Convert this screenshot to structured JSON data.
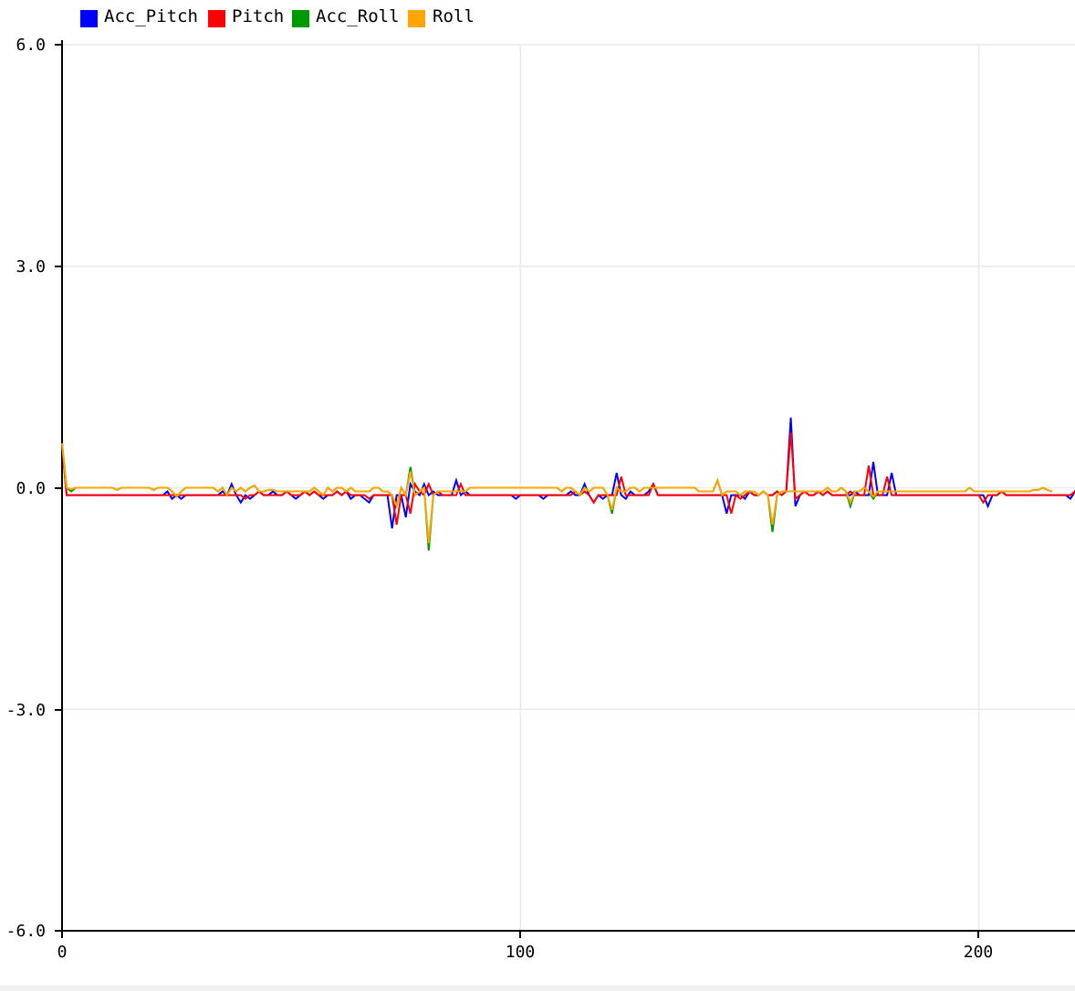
{
  "chart_data": {
    "type": "line",
    "title": "",
    "xlabel": "",
    "ylabel": "",
    "xlim": [
      0,
      221
    ],
    "ylim": [
      -6.0,
      6.0
    ],
    "x_ticks": [
      0,
      100,
      200
    ],
    "x_tick_labels": [
      "0",
      "100",
      "200"
    ],
    "y_ticks": [
      6.0,
      3.0,
      0.0,
      -3.0,
      -6.0
    ],
    "y_tick_labels": [
      "6.0",
      "3.0",
      "0.0",
      "-3.0",
      "-6.0"
    ],
    "grid": true,
    "legend_position": "top-left",
    "series": [
      {
        "name": "Acc_Pitch",
        "color": "#0000ff",
        "values": [
          0.6,
          -0.1,
          -0.1,
          -0.1,
          -0.1,
          -0.1,
          -0.1,
          -0.1,
          -0.1,
          -0.1,
          -0.1,
          -0.1,
          -0.1,
          -0.1,
          -0.1,
          -0.1,
          -0.1,
          -0.1,
          -0.1,
          -0.1,
          -0.1,
          -0.1,
          -0.1,
          -0.05,
          -0.15,
          -0.1,
          -0.15,
          -0.1,
          -0.1,
          -0.1,
          -0.1,
          -0.1,
          -0.1,
          -0.1,
          -0.1,
          -0.05,
          -0.1,
          0.05,
          -0.1,
          -0.2,
          -0.1,
          -0.15,
          -0.1,
          -0.05,
          -0.1,
          -0.1,
          -0.05,
          -0.1,
          -0.1,
          -0.05,
          -0.1,
          -0.15,
          -0.1,
          -0.05,
          -0.1,
          -0.05,
          -0.1,
          -0.15,
          -0.1,
          -0.1,
          -0.05,
          -0.1,
          -0.05,
          -0.15,
          -0.1,
          -0.1,
          -0.15,
          -0.2,
          -0.1,
          -0.1,
          -0.1,
          -0.1,
          -0.55,
          -0.1,
          -0.1,
          -0.4,
          0.05,
          -0.05,
          -0.1,
          0.05,
          -0.1,
          -0.05,
          -0.1,
          -0.1,
          -0.1,
          -0.1,
          0.1,
          -0.1,
          -0.05,
          -0.1,
          -0.1,
          -0.1,
          -0.1,
          -0.1,
          -0.1,
          -0.1,
          -0.1,
          -0.1,
          -0.1,
          -0.15,
          -0.1,
          -0.1,
          -0.1,
          -0.1,
          -0.1,
          -0.15,
          -0.1,
          -0.1,
          -0.1,
          -0.1,
          -0.1,
          -0.05,
          -0.1,
          -0.1,
          0.05,
          -0.1,
          -0.2,
          -0.1,
          -0.15,
          -0.1,
          -0.1,
          0.2,
          -0.1,
          -0.15,
          -0.05,
          -0.1,
          -0.1,
          -0.1,
          -0.05,
          0.05,
          -0.1,
          -0.1,
          -0.1,
          -0.1,
          -0.1,
          -0.1,
          -0.1,
          -0.1,
          -0.1,
          -0.1,
          -0.1,
          -0.1,
          -0.1,
          -0.1,
          -0.1,
          -0.35,
          -0.1,
          -0.1,
          -0.1,
          -0.15,
          -0.05,
          -0.1,
          -0.1,
          -0.05,
          -0.1,
          -0.1,
          -0.05,
          -0.1,
          -0.05,
          0.95,
          -0.25,
          -0.1,
          -0.05,
          -0.1,
          -0.1,
          -0.05,
          -0.1,
          -0.05,
          -0.1,
          -0.1,
          -0.1,
          -0.1,
          -0.1,
          -0.05,
          -0.1,
          -0.1,
          -0.1,
          0.35,
          -0.1,
          -0.1,
          -0.1,
          0.2,
          -0.1,
          -0.1,
          -0.1,
          -0.1,
          -0.1,
          -0.1,
          -0.1,
          -0.1,
          -0.1,
          -0.1,
          -0.1,
          -0.1,
          -0.1,
          -0.1,
          -0.1,
          -0.1,
          -0.1,
          -0.1,
          -0.1,
          -0.1,
          -0.25,
          -0.1,
          -0.1,
          -0.05,
          -0.1,
          -0.1,
          -0.1,
          -0.1,
          -0.1,
          -0.1,
          -0.1,
          -0.1,
          -0.1,
          -0.1,
          -0.1,
          -0.1,
          -0.1,
          -0.1,
          -0.15,
          -0.05,
          -0.1
        ],
        "markers": false
      },
      {
        "name": "Pitch",
        "color": "#ff0000",
        "values": [
          0.6,
          -0.1,
          -0.1,
          -0.1,
          -0.1,
          -0.1,
          -0.1,
          -0.1,
          -0.1,
          -0.1,
          -0.1,
          -0.1,
          -0.1,
          -0.1,
          -0.1,
          -0.1,
          -0.1,
          -0.1,
          -0.1,
          -0.1,
          -0.1,
          -0.1,
          -0.1,
          -0.1,
          -0.1,
          -0.1,
          -0.1,
          -0.1,
          -0.1,
          -0.1,
          -0.1,
          -0.1,
          -0.1,
          -0.1,
          -0.1,
          -0.1,
          -0.1,
          -0.1,
          -0.1,
          -0.1,
          -0.15,
          -0.1,
          -0.1,
          -0.05,
          -0.1,
          -0.1,
          -0.1,
          -0.1,
          -0.1,
          -0.05,
          -0.1,
          -0.1,
          -0.1,
          -0.05,
          -0.1,
          -0.05,
          -0.1,
          -0.1,
          -0.1,
          -0.1,
          -0.05,
          -0.1,
          -0.05,
          -0.1,
          -0.1,
          -0.1,
          -0.1,
          -0.15,
          -0.1,
          -0.1,
          -0.1,
          -0.1,
          -0.1,
          -0.5,
          -0.1,
          -0.1,
          -0.35,
          0.05,
          -0.05,
          -0.1,
          0.05,
          -0.1,
          -0.05,
          -0.1,
          -0.1,
          -0.1,
          -0.1,
          0.05,
          -0.1,
          -0.1,
          -0.1,
          -0.1,
          -0.1,
          -0.1,
          -0.1,
          -0.1,
          -0.1,
          -0.1,
          -0.1,
          -0.1,
          -0.1,
          -0.1,
          -0.1,
          -0.1,
          -0.1,
          -0.1,
          -0.1,
          -0.1,
          -0.1,
          -0.1,
          -0.1,
          -0.1,
          -0.05,
          -0.1,
          -0.05,
          -0.1,
          -0.2,
          -0.1,
          -0.1,
          -0.1,
          -0.1,
          -0.1,
          0.15,
          -0.1,
          -0.1,
          -0.1,
          -0.1,
          -0.1,
          -0.1,
          0.05,
          -0.1,
          -0.1,
          -0.1,
          -0.1,
          -0.1,
          -0.1,
          -0.1,
          -0.1,
          -0.1,
          -0.1,
          -0.1,
          -0.1,
          -0.1,
          -0.1,
          -0.1,
          -0.1,
          -0.35,
          -0.1,
          -0.15,
          -0.1,
          -0.05,
          -0.1,
          -0.1,
          -0.05,
          -0.1,
          -0.1,
          -0.05,
          -0.1,
          -0.05,
          0.75,
          -0.15,
          -0.1,
          -0.05,
          -0.1,
          -0.1,
          -0.05,
          -0.1,
          -0.05,
          -0.1,
          -0.1,
          -0.1,
          -0.1,
          -0.05,
          -0.1,
          -0.1,
          -0.1,
          0.3,
          -0.1,
          -0.1,
          -0.1,
          0.15,
          -0.1,
          -0.1,
          -0.1,
          -0.1,
          -0.1,
          -0.1,
          -0.1,
          -0.1,
          -0.1,
          -0.1,
          -0.1,
          -0.1,
          -0.1,
          -0.1,
          -0.1,
          -0.1,
          -0.1,
          -0.1,
          -0.1,
          -0.1,
          -0.2,
          -0.1,
          -0.1,
          -0.1,
          -0.05,
          -0.1,
          -0.1,
          -0.1,
          -0.1,
          -0.1,
          -0.1,
          -0.1,
          -0.1,
          -0.1,
          -0.1,
          -0.1,
          -0.1,
          -0.1,
          -0.1,
          -0.1,
          -0.05
        ],
        "markers": false
      },
      {
        "name": "Acc_Roll",
        "color": "#009900",
        "values": [
          0.6,
          0.0,
          -0.05,
          0.0,
          0.0,
          0.0,
          0.0,
          0.0,
          0.0,
          0.0,
          0.0,
          0.0,
          -0.03,
          0.0,
          0.0,
          0.0,
          0.0,
          0.0,
          0.0,
          0.0,
          -0.03,
          0.0,
          0.0,
          0.0,
          -0.05,
          -0.12,
          -0.05,
          0.0,
          0.0,
          0.0,
          0.0,
          0.0,
          0.0,
          0.0,
          -0.05,
          0.0,
          -0.1,
          0.0,
          -0.05,
          0.0,
          -0.05,
          0.0,
          0.03,
          -0.05,
          -0.05,
          -0.03,
          -0.03,
          -0.05,
          -0.05,
          -0.05,
          -0.05,
          -0.05,
          -0.05,
          -0.05,
          -0.05,
          0.0,
          -0.05,
          -0.1,
          0.0,
          -0.05,
          0.0,
          0.0,
          -0.05,
          0.0,
          -0.05,
          -0.05,
          -0.05,
          -0.05,
          0.0,
          0.0,
          -0.05,
          -0.05,
          -0.1,
          -0.25,
          0.0,
          -0.1,
          0.28,
          -0.1,
          -0.05,
          0.0,
          -0.85,
          -0.1,
          -0.05,
          -0.05,
          -0.05,
          -0.05,
          -0.05,
          -0.05,
          -0.05,
          0.0,
          0.0,
          0.0,
          0.0,
          0.0,
          0.0,
          0.0,
          0.0,
          0.0,
          0.0,
          0.0,
          0.0,
          0.0,
          0.0,
          0.0,
          0.0,
          0.0,
          0.0,
          0.0,
          0.0,
          -0.05,
          0.0,
          0.0,
          -0.05,
          -0.1,
          0.0,
          -0.05,
          0.0,
          0.0,
          0.0,
          -0.1,
          -0.35,
          0.0,
          -0.05,
          -0.05,
          0.0,
          0.0,
          -0.05,
          0.0,
          0.0,
          0.0,
          0.0,
          0.0,
          0.0,
          0.0,
          0.0,
          0.0,
          0.0,
          0.0,
          0.0,
          -0.05,
          -0.05,
          -0.05,
          -0.05,
          0.1,
          -0.1,
          -0.05,
          -0.05,
          -0.05,
          -0.1,
          -0.05,
          -0.05,
          -0.05,
          -0.1,
          -0.05,
          -0.1,
          -0.6,
          -0.1,
          -0.05,
          -0.05,
          -0.05,
          -0.05,
          -0.05,
          -0.05,
          -0.05,
          -0.05,
          -0.05,
          -0.05,
          0.0,
          -0.05,
          -0.05,
          0.0,
          -0.05,
          -0.25,
          -0.05,
          -0.05,
          0.0,
          -0.05,
          -0.15,
          -0.05,
          -0.05,
          -0.05,
          -0.05,
          -0.05,
          -0.05,
          -0.05,
          -0.05,
          -0.05,
          -0.05,
          -0.05,
          -0.05,
          -0.05,
          -0.05,
          -0.05,
          -0.05,
          -0.05,
          -0.05,
          -0.05,
          -0.05,
          0.0,
          -0.05,
          -0.05,
          -0.05,
          -0.05,
          -0.05,
          -0.05,
          -0.05,
          -0.05,
          -0.05,
          -0.05,
          -0.05,
          -0.05,
          -0.05,
          -0.03,
          -0.03,
          0.0,
          -0.03,
          -0.05
        ],
        "markers": false
      },
      {
        "name": "Roll",
        "color": "#ffa500",
        "values": [
          0.6,
          0.0,
          -0.02,
          0.0,
          0.0,
          0.0,
          0.0,
          0.0,
          0.0,
          0.0,
          0.0,
          0.0,
          -0.03,
          0.0,
          0.0,
          0.0,
          0.0,
          0.0,
          0.0,
          0.0,
          -0.03,
          0.0,
          0.0,
          0.0,
          -0.05,
          -0.12,
          -0.05,
          0.0,
          0.0,
          0.0,
          0.0,
          0.0,
          0.0,
          0.0,
          -0.05,
          0.0,
          -0.1,
          0.0,
          -0.05,
          0.0,
          -0.05,
          0.0,
          0.03,
          -0.05,
          -0.05,
          -0.03,
          -0.03,
          -0.05,
          -0.05,
          -0.05,
          -0.05,
          -0.05,
          -0.05,
          -0.05,
          -0.05,
          0.0,
          -0.05,
          -0.1,
          0.0,
          -0.05,
          0.0,
          0.0,
          -0.05,
          0.0,
          -0.05,
          -0.05,
          -0.05,
          -0.05,
          0.0,
          0.0,
          -0.05,
          -0.05,
          -0.1,
          -0.25,
          0.0,
          -0.1,
          0.22,
          -0.1,
          -0.05,
          0.0,
          -0.75,
          -0.1,
          -0.05,
          -0.05,
          -0.05,
          -0.05,
          -0.05,
          -0.05,
          -0.05,
          0.0,
          0.0,
          0.0,
          0.0,
          0.0,
          0.0,
          0.0,
          0.0,
          0.0,
          0.0,
          0.0,
          0.0,
          0.0,
          0.0,
          0.0,
          0.0,
          0.0,
          0.0,
          0.0,
          0.0,
          -0.05,
          0.0,
          0.0,
          -0.05,
          -0.1,
          0.0,
          -0.05,
          0.0,
          0.0,
          0.0,
          -0.1,
          -0.3,
          0.0,
          -0.05,
          -0.05,
          0.0,
          0.0,
          -0.05,
          0.0,
          0.0,
          0.0,
          0.0,
          0.0,
          0.0,
          0.0,
          0.0,
          0.0,
          0.0,
          0.0,
          0.0,
          -0.05,
          -0.05,
          -0.05,
          -0.05,
          0.1,
          -0.1,
          -0.05,
          -0.05,
          -0.05,
          -0.1,
          -0.05,
          -0.05,
          -0.05,
          -0.1,
          -0.05,
          -0.1,
          -0.5,
          -0.1,
          -0.05,
          -0.05,
          -0.05,
          -0.05,
          -0.05,
          -0.05,
          -0.05,
          -0.05,
          -0.05,
          -0.05,
          0.0,
          -0.05,
          -0.05,
          0.0,
          -0.05,
          -0.2,
          -0.05,
          -0.05,
          0.0,
          -0.05,
          -0.12,
          -0.05,
          -0.05,
          -0.05,
          -0.05,
          -0.05,
          -0.05,
          -0.05,
          -0.05,
          -0.05,
          -0.05,
          -0.05,
          -0.05,
          -0.05,
          -0.05,
          -0.05,
          -0.05,
          -0.05,
          -0.05,
          -0.05,
          -0.05,
          0.0,
          -0.05,
          -0.05,
          -0.05,
          -0.05,
          -0.05,
          -0.05,
          -0.05,
          -0.05,
          -0.05,
          -0.05,
          -0.05,
          -0.05,
          -0.05,
          -0.03,
          -0.03,
          0.0,
          -0.03,
          -0.05
        ],
        "markers": false
      }
    ]
  }
}
